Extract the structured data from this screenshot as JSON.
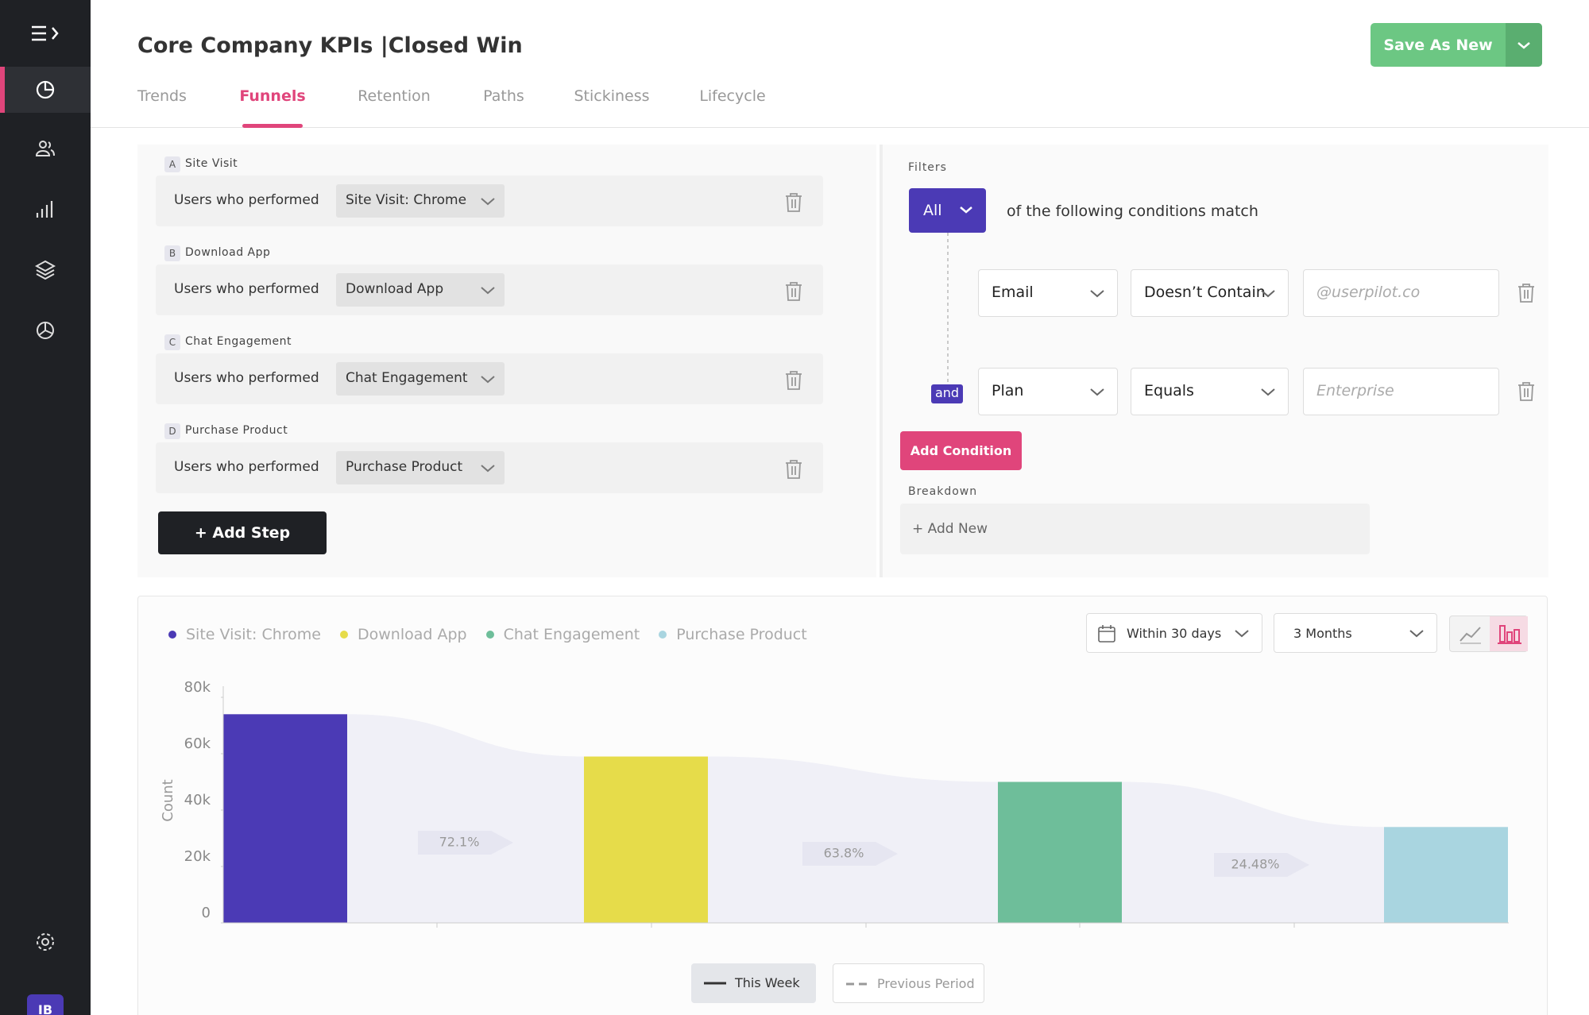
{
  "sidebar": {
    "avatar": "IB"
  },
  "header": {
    "title": "Core Company KPIs |Closed Win",
    "save_button": "Save As New",
    "tabs": [
      "Trends",
      "Funnels",
      "Retention",
      "Paths",
      "Stickiness",
      "Lifecycle"
    ]
  },
  "steps": [
    {
      "letter": "A",
      "name": "Site Visit",
      "prefix": "Users who performed",
      "event": "Site Visit: Chrome"
    },
    {
      "letter": "B",
      "name": "Download App",
      "prefix": "Users who performed",
      "event": "Download App"
    },
    {
      "letter": "C",
      "name": "Chat Engagement",
      "prefix": "Users who performed",
      "event": "Chat Engagement"
    },
    {
      "letter": "D",
      "name": "Purchase Product",
      "prefix": "Users who performed",
      "event": "Purchase Product"
    }
  ],
  "add_step": "+ Add Step",
  "filters": {
    "label": "Filters",
    "match": "All",
    "match_text": "of the following conditions match",
    "conditions": [
      {
        "property": "Email",
        "operator": "Doesn’t Contain",
        "value": "@userpilot.co"
      },
      {
        "connector": "and",
        "property": "Plan",
        "operator": "Equals",
        "value": "Enterprise"
      }
    ],
    "add_condition": "Add Condition",
    "breakdown_label": "Breakdown",
    "breakdown_add": "+ Add New"
  },
  "chart_controls": {
    "window": "Within 30 days",
    "range": "3 Months",
    "compare": [
      "This Week",
      "Previous Period"
    ]
  },
  "chart_data": {
    "type": "bar",
    "y_label": "Count",
    "series": [
      {
        "name": "Site Visit: Chrome",
        "color": "#4b3ab5",
        "values": [
          74000
        ]
      },
      {
        "name": "Download App",
        "color": "#e6dc4a",
        "values": [
          59000
        ]
      },
      {
        "name": "Chat Engagement",
        "color": "#6ebe9a",
        "values": [
          50000
        ]
      },
      {
        "name": "Purchase Product",
        "color": "#a9d5e0",
        "values": [
          34000
        ]
      }
    ],
    "conversion_rates": [
      72.1,
      63.8,
      24.48
    ],
    "conversion_labels": [
      "72.1%",
      "63.8%",
      "24.48%"
    ],
    "ylim": [
      0,
      80000
    ],
    "yticks": [
      0,
      {
        "value": 20000,
        "label": "20k"
      },
      {
        "value": 40000,
        "label": "40k"
      },
      {
        "value": 60000,
        "label": "60k"
      },
      {
        "value": 80000,
        "label": "80k"
      }
    ],
    "grid": false
  }
}
